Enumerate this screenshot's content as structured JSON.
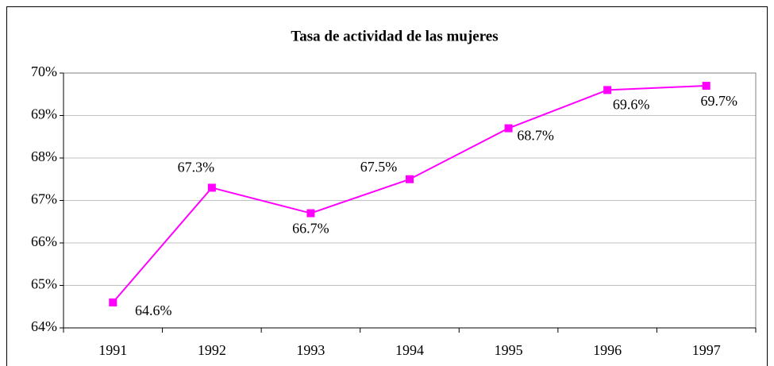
{
  "chart_data": {
    "type": "line",
    "title": "Tasa de actividad de las mujeres",
    "categories": [
      "1991",
      "1992",
      "1993",
      "1994",
      "1995",
      "1996",
      "1997"
    ],
    "series": [
      {
        "name": "Tasa de actividad",
        "color": "#ff00ff",
        "values": [
          64.6,
          67.3,
          66.7,
          67.5,
          68.7,
          69.6,
          69.7
        ],
        "value_labels": [
          "64.6%",
          "67.3%",
          "66.7%",
          "67.5%",
          "68.7%",
          "69.6%",
          "69.7%"
        ]
      }
    ],
    "ylim": [
      64,
      70
    ],
    "yticks": [
      {
        "value": 64,
        "label": "64%"
      },
      {
        "value": 65,
        "label": "65%"
      },
      {
        "value": 66,
        "label": "66%"
      },
      {
        "value": 67,
        "label": "67%"
      },
      {
        "value": 68,
        "label": "68%"
      },
      {
        "value": 69,
        "label": "69%"
      },
      {
        "value": 70,
        "label": "70%"
      }
    ],
    "grid": true
  }
}
